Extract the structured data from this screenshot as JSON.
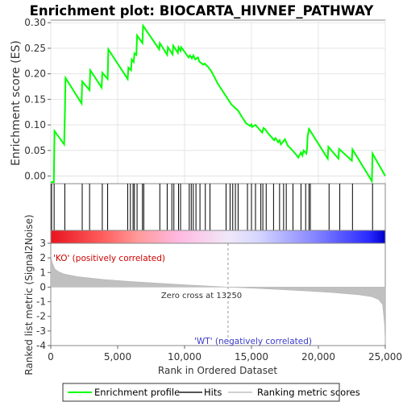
{
  "chart_data": {
    "type": "line",
    "title": "Enrichment plot: BIOCARTA_HIVNEF_PATHWAY",
    "top_panel": {
      "ylabel": "Enrichment score (ES)",
      "ylim": [
        -0.015,
        0.305
      ],
      "yticks": [
        0.0,
        0.05,
        0.1,
        0.15,
        0.2,
        0.25,
        0.3
      ],
      "ytick_labels": [
        "0.00",
        "0.05",
        "0.10",
        "0.15",
        "0.20",
        "0.25",
        "0.30"
      ],
      "grid": true,
      "series": [
        {
          "name": "Enrichment profile",
          "color": "#00ff00",
          "x": [
            0,
            230,
            280,
            1000,
            1060,
            1100,
            2300,
            2350,
            2900,
            2950,
            3800,
            3850,
            4250,
            4300,
            5750,
            5800,
            6000,
            6050,
            6200,
            6250,
            6400,
            6450,
            6850,
            6900,
            8100,
            8150,
            8700,
            8750,
            9100,
            9150,
            9500,
            9550,
            9700,
            9750,
            10300,
            10400,
            10550,
            10650,
            10800,
            11000,
            11100,
            11400,
            11500,
            11700,
            11800,
            12000,
            12500,
            13000,
            13500,
            14000,
            14300,
            14600,
            14900,
            15000,
            15050,
            15300,
            15500,
            15800,
            15900,
            16000,
            16200,
            16500,
            16700,
            16800,
            17000,
            17100,
            17200,
            17500,
            17600,
            17700,
            18000,
            18300,
            18500,
            18700,
            18800,
            18900,
            19000,
            19100,
            19150,
            19200,
            19300,
            20700,
            20750,
            21500,
            21550,
            22500,
            22550,
            24000,
            24050,
            25000
          ],
          "y": [
            -0.012,
            -0.012,
            0.088,
            0.062,
            0.128,
            0.192,
            0.142,
            0.185,
            0.168,
            0.207,
            0.173,
            0.202,
            0.19,
            0.248,
            0.19,
            0.212,
            0.207,
            0.228,
            0.223,
            0.24,
            0.237,
            0.275,
            0.26,
            0.294,
            0.248,
            0.26,
            0.237,
            0.252,
            0.238,
            0.255,
            0.241,
            0.252,
            0.245,
            0.252,
            0.232,
            0.236,
            0.23,
            0.236,
            0.228,
            0.232,
            0.224,
            0.218,
            0.22,
            0.215,
            0.212,
            0.205,
            0.18,
            0.16,
            0.14,
            0.128,
            0.115,
            0.103,
            0.098,
            0.101,
            0.096,
            0.1,
            0.094,
            0.085,
            0.094,
            0.092,
            0.085,
            0.076,
            0.07,
            0.074,
            0.066,
            0.07,
            0.062,
            0.072,
            0.066,
            0.06,
            0.052,
            0.043,
            0.036,
            0.046,
            0.04,
            0.05,
            0.047,
            0.044,
            0.052,
            0.078,
            0.092,
            0.034,
            0.057,
            0.034,
            0.053,
            0.03,
            0.052,
            -0.01,
            0.044,
            0.0
          ]
        }
      ]
    },
    "hits": [
      60,
      250,
      1050,
      2350,
      2900,
      3850,
      4250,
      5750,
      5950,
      6150,
      6250,
      6450,
      6850,
      6950,
      8150,
      8700,
      9050,
      9200,
      9550,
      9700,
      10350,
      10500,
      10650,
      10850,
      11150,
      11550,
      11900,
      13100,
      13400,
      13600,
      13800,
      14000,
      14700,
      15000,
      15300,
      15700,
      15850,
      16100,
      16650,
      17100,
      17400,
      17600,
      18100,
      18700,
      19050,
      19300,
      19400,
      20800,
      21600,
      22550,
      24050
    ],
    "ranking": {
      "ylabel": "Ranked list metric (Signal2Noise)",
      "xlabel": "Rank in Ordered Dataset",
      "ylim": [
        -4,
        3
      ],
      "yticks": [
        3,
        2,
        1,
        0,
        -1,
        -2,
        -3,
        -4
      ],
      "xlim": [
        0,
        25000
      ],
      "xticks": [
        0,
        5000,
        10000,
        15000,
        20000,
        25000
      ],
      "xtick_labels": [
        "0",
        "5,000",
        "10,000",
        "15,000",
        "20,000",
        "25,000"
      ],
      "x": [
        0,
        100,
        300,
        600,
        1000,
        2000,
        4000,
        6000,
        8000,
        10000,
        12000,
        13250,
        15000,
        17000,
        19000,
        21000,
        23000,
        24000,
        24500,
        24800,
        24950,
        25000
      ],
      "y": [
        2.2,
        1.7,
        1.25,
        1.05,
        0.9,
        0.72,
        0.52,
        0.38,
        0.27,
        0.16,
        0.06,
        0.0,
        -0.07,
        -0.16,
        -0.26,
        -0.37,
        -0.52,
        -0.66,
        -0.85,
        -1.2,
        -2.6,
        -3.9
      ],
      "zero_cross_label": "Zero cross at 13250",
      "zero_cross": 13250,
      "positive_label": "'KO' (positively correlated)",
      "negative_label": "'WT' (negatively correlated)",
      "positive_color": "#ff0000",
      "negative_color": "#0000ff"
    },
    "legend": {
      "placement": "bottom",
      "items": [
        {
          "label": "Enrichment profile",
          "color": "#00ff00"
        },
        {
          "label": "Hits",
          "color": "#000000"
        },
        {
          "label": "Ranking metric scores",
          "color": "#c0c0c0"
        }
      ]
    }
  }
}
